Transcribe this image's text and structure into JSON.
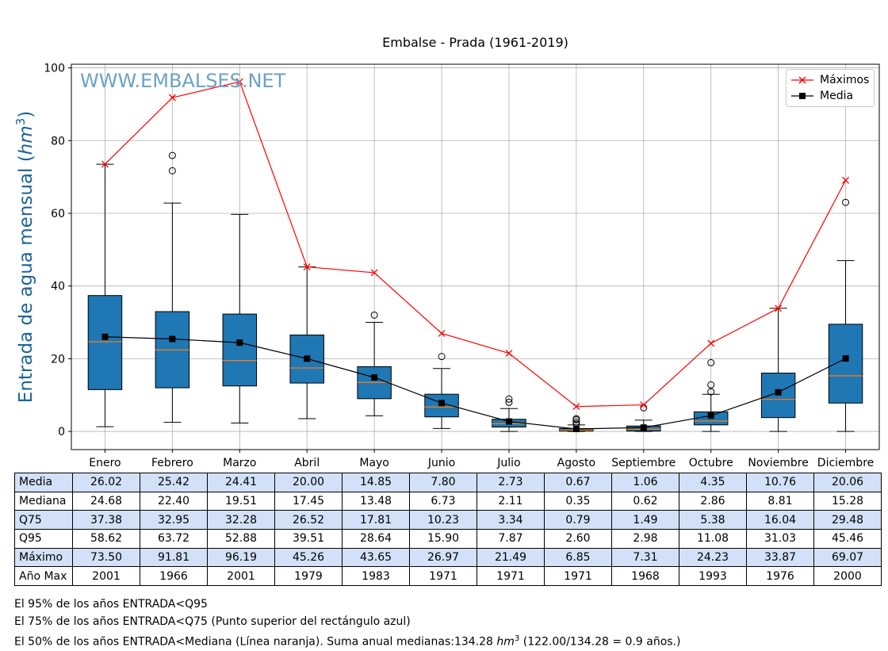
{
  "chart_data": {
    "type": "box",
    "title": "Embalse - Prada (1961-2019)",
    "ylabel_text": "Entrada de agua mensual (",
    "ylabel_unit": "hm",
    "ylabel_exp": "3",
    "ylabel_close": ")",
    "watermark": "WWW.EMBALSES.NET",
    "ylim": [
      -5,
      101
    ],
    "yticks": [
      "0",
      "20",
      "40",
      "60",
      "80",
      "100"
    ],
    "grid": true,
    "legend_position": "top-right",
    "categories": [
      "Enero",
      "Febrero",
      "Marzo",
      "Abril",
      "Mayo",
      "Junio",
      "Julio",
      "Agosto",
      "Septiembre",
      "Octubre",
      "Noviembre",
      "Diciembre"
    ],
    "boxes": {
      "q25": [
        11.5,
        12.0,
        12.5,
        13.3,
        9.0,
        4.0,
        1.2,
        0.1,
        0.1,
        1.8,
        3.8,
        7.8
      ],
      "median": [
        24.68,
        22.4,
        19.51,
        17.45,
        13.48,
        6.73,
        2.11,
        0.35,
        0.62,
        2.86,
        8.81,
        15.28
      ],
      "q75": [
        37.38,
        32.95,
        32.28,
        26.52,
        17.81,
        10.23,
        3.34,
        0.79,
        1.49,
        5.38,
        16.04,
        29.48
      ],
      "whisker_low": [
        1.3,
        2.5,
        2.3,
        3.5,
        4.3,
        0.8,
        0.0,
        0.0,
        0.0,
        0.0,
        0.0,
        0.0
      ],
      "whisker_high": [
        73.5,
        62.8,
        59.7,
        45.26,
        30.0,
        17.3,
        6.3,
        1.8,
        3.1,
        10.2,
        33.87,
        47.0
      ],
      "outliers": [
        [],
        [
          71.7,
          75.9
        ],
        [],
        [],
        [
          32.0
        ],
        [
          20.6
        ],
        [
          8.0,
          8.9
        ],
        [
          2.1,
          2.6,
          3.2,
          3.5
        ],
        [
          6.5
        ],
        [
          10.9,
          12.8,
          18.9
        ],
        [],
        [
          63.0
        ]
      ]
    },
    "series": [
      {
        "name": "Máximos",
        "color": "#ff0000",
        "marker": "x",
        "values": [
          73.5,
          91.81,
          96.19,
          45.26,
          43.65,
          26.97,
          21.49,
          6.85,
          7.31,
          24.23,
          33.87,
          69.07
        ]
      },
      {
        "name": "Media",
        "color": "#000000",
        "marker": "square",
        "values": [
          26.02,
          25.42,
          24.41,
          20.0,
          14.85,
          7.8,
          2.73,
          0.67,
          1.06,
          4.35,
          10.76,
          20.06
        ]
      }
    ],
    "table": {
      "rows": [
        {
          "label": "Media",
          "values": [
            "26.02",
            "25.42",
            "24.41",
            "20.00",
            "14.85",
            "7.80",
            "2.73",
            "0.67",
            "1.06",
            "4.35",
            "10.76",
            "20.06"
          ]
        },
        {
          "label": "Mediana",
          "values": [
            "24.68",
            "22.40",
            "19.51",
            "17.45",
            "13.48",
            "6.73",
            "2.11",
            "0.35",
            "0.62",
            "2.86",
            "8.81",
            "15.28"
          ]
        },
        {
          "label": "Q75",
          "values": [
            "37.38",
            "32.95",
            "32.28",
            "26.52",
            "17.81",
            "10.23",
            "3.34",
            "0.79",
            "1.49",
            "5.38",
            "16.04",
            "29.48"
          ]
        },
        {
          "label": "Q95",
          "values": [
            "58.62",
            "63.72",
            "52.88",
            "39.51",
            "28.64",
            "15.90",
            "7.87",
            "2.60",
            "2.98",
            "11.08",
            "31.03",
            "45.46"
          ]
        },
        {
          "label": "Máximo",
          "values": [
            "73.50",
            "91.81",
            "96.19",
            "45.26",
            "43.65",
            "26.97",
            "21.49",
            "6.85",
            "7.31",
            "24.23",
            "33.87",
            "69.07"
          ]
        },
        {
          "label": "Año Max",
          "values": [
            "2001",
            "1966",
            "2001",
            "1979",
            "1983",
            "1971",
            "1971",
            "1971",
            "1968",
            "1993",
            "1976",
            "2000"
          ]
        }
      ]
    }
  },
  "notes": {
    "line1": "El 95% de los años ENTRADA<Q95",
    "line2": "El 75% de los años ENTRADA<Q75 (Punto superior del rectángulo azul)",
    "line3_a": "El 50% de los años ENTRADA<Mediana (Línea naranja). Suma anual medianas:134.28 ",
    "line3_unit": "hm",
    "line3_exp": "3",
    "line3_b": " (122.00/134.28 = 0.9 años.)"
  },
  "colors": {
    "box": "#1f77b4",
    "median": "#ff7f0e",
    "grid": "#b0b0b0",
    "table_shade": "#d2e1f7"
  }
}
